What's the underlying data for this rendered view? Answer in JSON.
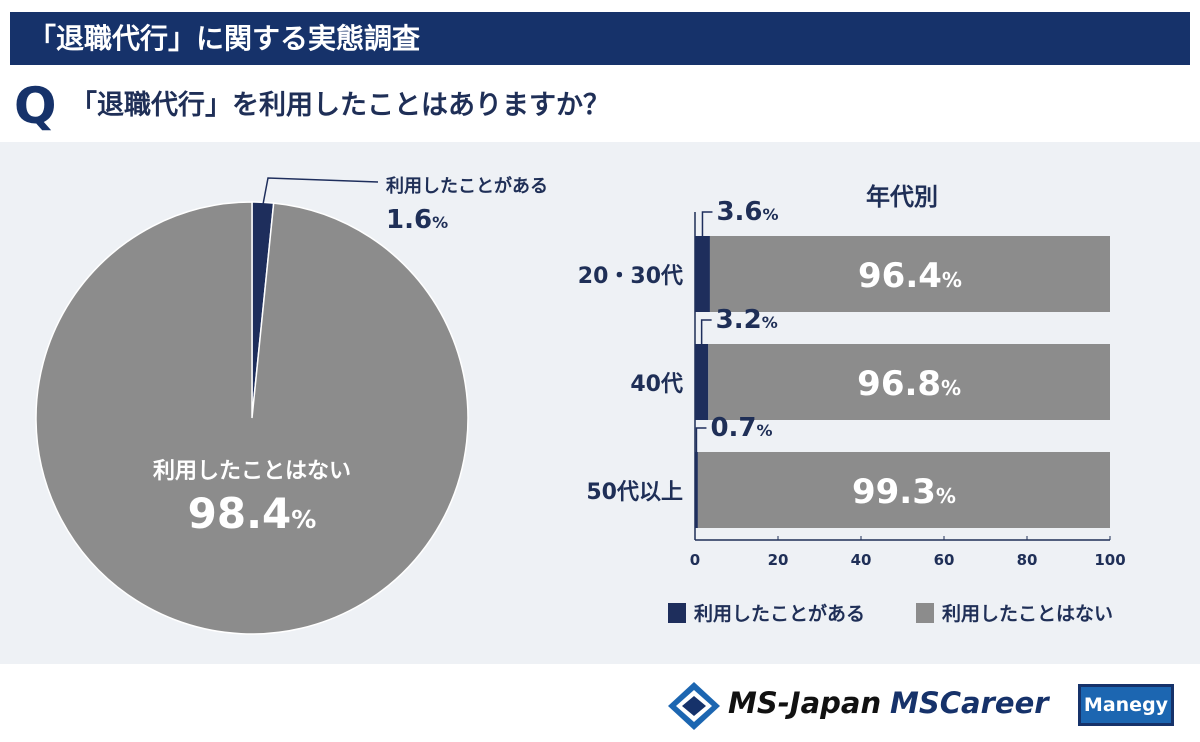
{
  "header": {
    "title": "「退職代行」に関する実態調査",
    "q_mark": "Q",
    "question": "「退職代行」を利用したことはありますか？"
  },
  "colors": {
    "navy": "#16326a",
    "bar_navy": "#1e2e5c",
    "gray": "#8c8c8c",
    "panel": "#eef1f5"
  },
  "chart_data": [
    {
      "type": "pie",
      "title": "",
      "slices": [
        {
          "label": "利用したことがある",
          "value": 1.6,
          "display": "1.6",
          "unit": "%",
          "color": "#1e2e5c"
        },
        {
          "label": "利用したことはない",
          "value": 98.4,
          "display": "98.4",
          "unit": "%",
          "color": "#8c8c8c"
        }
      ]
    },
    {
      "type": "bar",
      "orientation": "horizontal",
      "stacked": true,
      "title": "年代別",
      "categories": [
        "20・30代",
        "40代",
        "50代以上"
      ],
      "series": [
        {
          "name": "利用したことがある",
          "color": "#1e2e5c",
          "values": [
            3.6,
            3.2,
            0.7
          ],
          "labels": [
            "3.6",
            "3.2",
            "0.7"
          ]
        },
        {
          "name": "利用したことはない",
          "color": "#8c8c8c",
          "values": [
            96.4,
            96.8,
            99.3
          ],
          "labels": [
            "96.4",
            "96.8",
            "99.3"
          ]
        }
      ],
      "unit": "%",
      "xlim": [
        0,
        100
      ],
      "xticks": [
        "0",
        "20",
        "40",
        "60",
        "80",
        "100"
      ],
      "legend": "bottom"
    }
  ],
  "footer": {
    "ms_japan": "MS-Japan",
    "mscareer": "MSCareer",
    "manegy": "Manegy"
  }
}
